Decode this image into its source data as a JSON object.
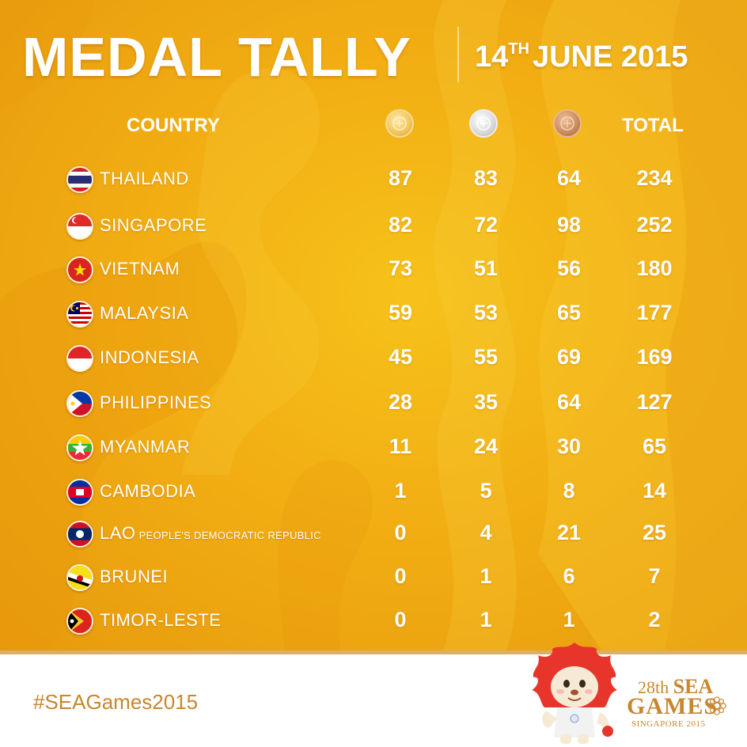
{
  "title": "MEDAL TALLY",
  "date": {
    "day": "14",
    "suffix": "TH",
    "rest": "JUNE 2015"
  },
  "headers": {
    "country": "COUNTRY",
    "total": "TOTAL"
  },
  "medal_icons": [
    "gold-medal-icon",
    "silver-medal-icon",
    "bronze-medal-icon"
  ],
  "rows": [
    {
      "country": "THAILAND",
      "sub": "",
      "gold": "87",
      "silver": "83",
      "bronze": "64",
      "total": "234"
    },
    {
      "country": "SINGAPORE",
      "sub": "",
      "gold": "82",
      "silver": "72",
      "bronze": "98",
      "total": "252"
    },
    {
      "country": "VIETNAM",
      "sub": "",
      "gold": "73",
      "silver": "51",
      "bronze": "56",
      "total": "180"
    },
    {
      "country": "MALAYSIA",
      "sub": "",
      "gold": "59",
      "silver": "53",
      "bronze": "65",
      "total": "177"
    },
    {
      "country": "INDONESIA",
      "sub": "",
      "gold": "45",
      "silver": "55",
      "bronze": "69",
      "total": "169"
    },
    {
      "country": "PHILIPPINES",
      "sub": "",
      "gold": "28",
      "silver": "35",
      "bronze": "64",
      "total": "127"
    },
    {
      "country": "MYANMAR",
      "sub": "",
      "gold": "11",
      "silver": "24",
      "bronze": "30",
      "total": "65"
    },
    {
      "country": "CAMBODIA",
      "sub": "",
      "gold": "1",
      "silver": "5",
      "bronze": "8",
      "total": "14"
    },
    {
      "country": "LAO",
      "sub": "PEOPLE'S DEMOCRATIC REPUBLIC",
      "gold": "0",
      "silver": "4",
      "bronze": "21",
      "total": "25"
    },
    {
      "country": "BRUNEI",
      "sub": "",
      "gold": "0",
      "silver": "1",
      "bronze": "6",
      "total": "7"
    },
    {
      "country": "TIMOR-LESTE",
      "sub": "",
      "gold": "0",
      "silver": "1",
      "bronze": "1",
      "total": "2"
    }
  ],
  "footer": {
    "hashtag": "#SEAGames2015",
    "logo": {
      "edition": "28th",
      "sea": "SEA",
      "games": "GAMES",
      "location": "SINGAPORE 2015"
    }
  },
  "colors": {
    "background": "#f2ae13",
    "text": "#ffffff",
    "accent": "#c8862e"
  }
}
